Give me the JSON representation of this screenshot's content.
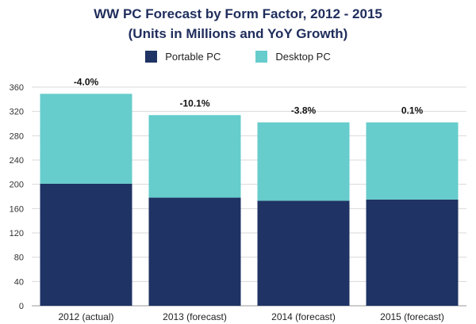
{
  "chart_data": {
    "type": "bar",
    "stacked": true,
    "title": "WW PC Forecast by Form Factor, 2012 - 2015",
    "subtitle": "(Units in Millions and YoY Growth)",
    "categories": [
      "2012 (actual)",
      "2013 (forecast)",
      "2014 (forecast)",
      "2015 (forecast)"
    ],
    "series": [
      {
        "name": "Portable PC",
        "color": "#1f3364",
        "values": [
          201,
          178,
          173,
          175
        ]
      },
      {
        "name": "Desktop PC",
        "color": "#66cccc",
        "values": [
          148,
          136,
          129,
          127
        ]
      }
    ],
    "growth_labels": [
      "-4.0%",
      "-10.1%",
      "-3.8%",
      "0.1%"
    ],
    "ylim": [
      0,
      360
    ],
    "yticks": [
      0,
      40,
      80,
      120,
      160,
      200,
      240,
      280,
      320,
      360
    ],
    "grid": true,
    "legend_position": "top-center",
    "xlabel": "",
    "ylabel": ""
  }
}
